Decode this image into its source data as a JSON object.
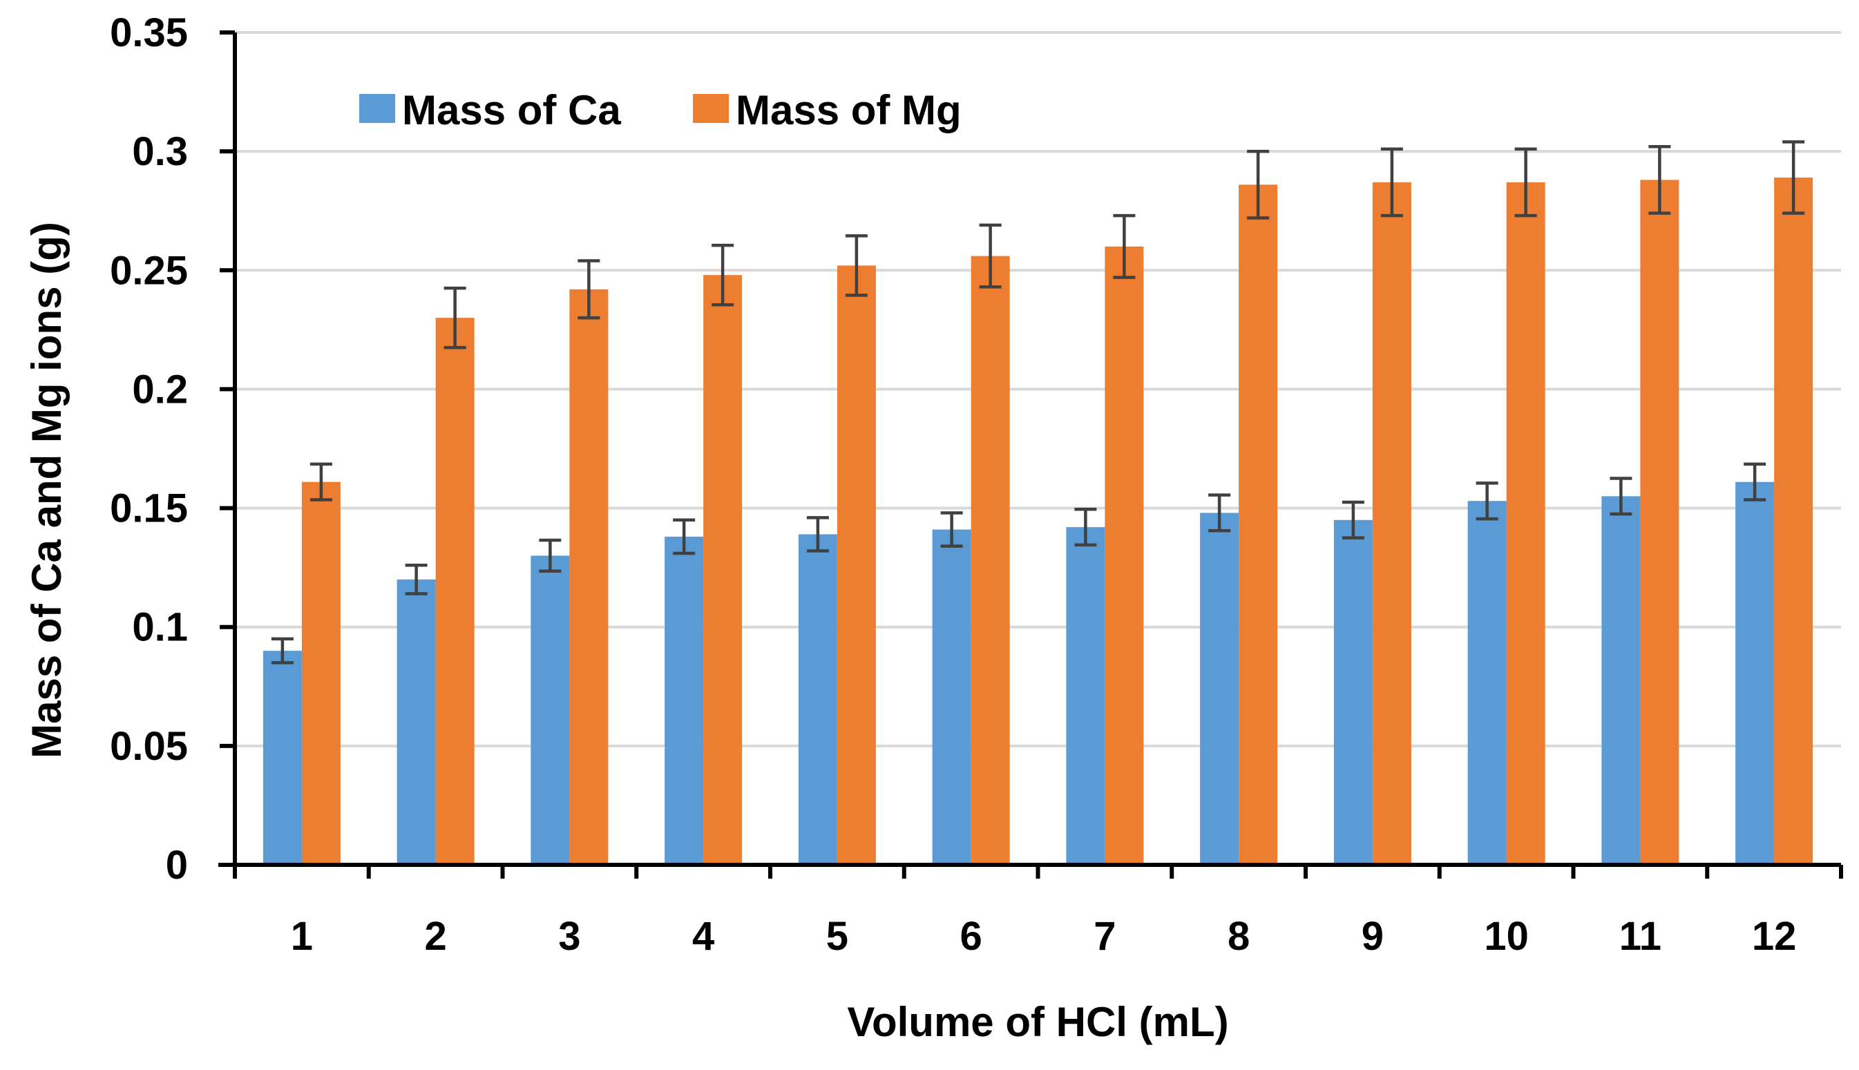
{
  "chart_data": {
    "type": "bar",
    "title": "",
    "xlabel": "Volume of HCl (mL)",
    "ylabel": "Mass of Ca and Mg ions (g)",
    "ylim": [
      0,
      0.35
    ],
    "yticks": [
      0,
      0.05,
      0.1,
      0.15,
      0.2,
      0.25,
      0.3,
      0.35
    ],
    "ytick_labels": [
      "0",
      "0.05",
      "0.1",
      "0.15",
      "0.2",
      "0.25",
      "0.3",
      "0.35"
    ],
    "grid": true,
    "legend_position": "top-left",
    "categories": [
      "1",
      "2",
      "3",
      "4",
      "5",
      "6",
      "7",
      "8",
      "9",
      "10",
      "11",
      "12"
    ],
    "series": [
      {
        "name": "Mass of Ca",
        "color": "#5B9BD5",
        "values": [
          0.09,
          0.12,
          0.13,
          0.138,
          0.139,
          0.141,
          0.142,
          0.148,
          0.145,
          0.153,
          0.155,
          0.161
        ],
        "errors": [
          0.005,
          0.006,
          0.0065,
          0.007,
          0.007,
          0.007,
          0.0075,
          0.0075,
          0.0075,
          0.0075,
          0.0075,
          0.0075
        ]
      },
      {
        "name": "Mass of Mg",
        "color": "#ED7D31",
        "values": [
          0.161,
          0.23,
          0.242,
          0.248,
          0.252,
          0.256,
          0.26,
          0.286,
          0.287,
          0.287,
          0.288,
          0.289
        ],
        "errors": [
          0.0075,
          0.0125,
          0.012,
          0.0125,
          0.0125,
          0.013,
          0.013,
          0.014,
          0.014,
          0.014,
          0.014,
          0.015
        ]
      }
    ],
    "error_bar_color": "#404040",
    "axis_color": "#000000",
    "grid_color": "#D9D9D9"
  }
}
